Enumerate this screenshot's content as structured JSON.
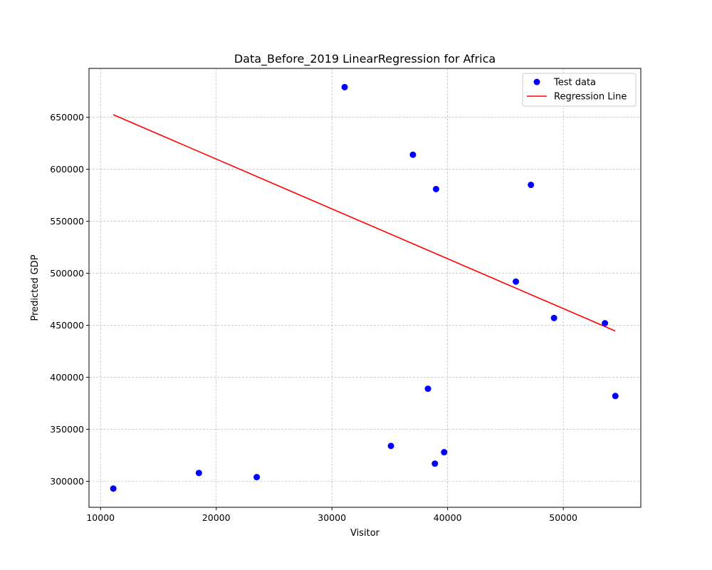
{
  "chart_data": {
    "type": "scatter",
    "title": "Data_Before_2019 LinearRegression for Africa",
    "xlabel": "Visitor",
    "ylabel": "Predicted GDP",
    "xlim": [
      9000,
      56700
    ],
    "ylim": [
      275000,
      697000
    ],
    "xticks": [
      10000,
      20000,
      30000,
      40000,
      50000
    ],
    "yticks": [
      300000,
      350000,
      400000,
      450000,
      500000,
      550000,
      600000,
      650000
    ],
    "grid": true,
    "legend_position": "top-right",
    "series": [
      {
        "name": "Test data",
        "kind": "scatter",
        "color": "#0000ff",
        "points": [
          [
            31100,
            679000
          ],
          [
            37000,
            614000
          ],
          [
            39000,
            581000
          ],
          [
            47200,
            585000
          ],
          [
            45900,
            492000
          ],
          [
            49200,
            457000
          ],
          [
            53600,
            452000
          ],
          [
            54500,
            382000
          ],
          [
            38300,
            389000
          ],
          [
            35100,
            334000
          ],
          [
            39700,
            328000
          ],
          [
            38900,
            317000
          ],
          [
            18500,
            308000
          ],
          [
            23500,
            304000
          ],
          [
            11100,
            293000
          ]
        ]
      },
      {
        "name": "Regression Line",
        "kind": "line",
        "color": "#ff0000",
        "points": [
          [
            11100,
            652500
          ],
          [
            54500,
            444500
          ]
        ]
      }
    ]
  }
}
